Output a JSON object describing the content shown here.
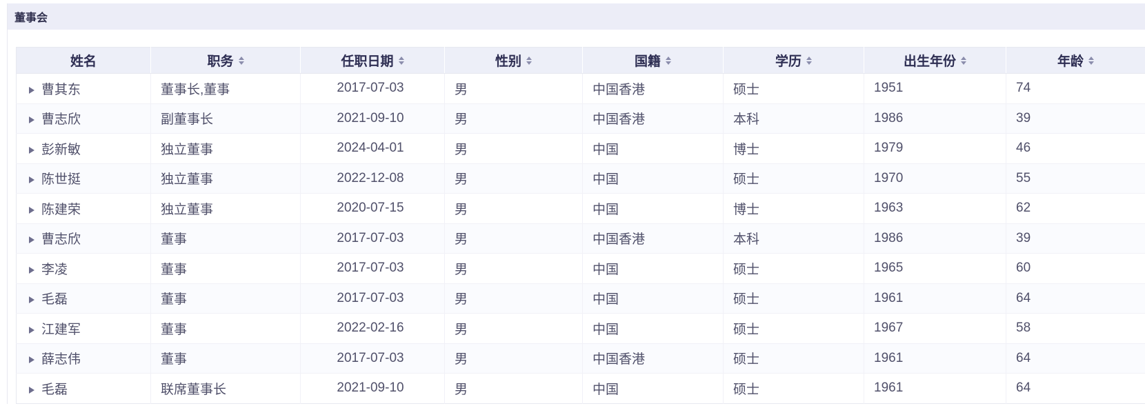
{
  "panel": {
    "title": "董事会"
  },
  "icons": {
    "expand": "▶",
    "sort_asc": "▲",
    "sort_desc": "▼"
  },
  "colors": {
    "title_bar_bg": "#ecedf7",
    "header_bg": "#edeff8",
    "border": "#e7e8f0",
    "row_stripe": "#fafbfe",
    "cell_text": "#50506a",
    "header_text": "#2d2d52",
    "sort_icon": "#8b8dac"
  },
  "table": {
    "columns": [
      {
        "id": "name",
        "label": "姓名",
        "sortable": false
      },
      {
        "id": "position",
        "label": "职务",
        "sortable": true
      },
      {
        "id": "start_date",
        "label": "任职日期",
        "sortable": true
      },
      {
        "id": "gender",
        "label": "性别",
        "sortable": true
      },
      {
        "id": "nationality",
        "label": "国籍",
        "sortable": true
      },
      {
        "id": "education",
        "label": "学历",
        "sortable": true
      },
      {
        "id": "birth_year",
        "label": "出生年份",
        "sortable": true
      },
      {
        "id": "age",
        "label": "年龄",
        "sortable": true
      }
    ],
    "rows": [
      {
        "name": "曹其东",
        "position": "董事长,董事",
        "start_date": "2017-07-03",
        "gender": "男",
        "nationality": "中国香港",
        "education": "硕士",
        "birth_year": "1951",
        "age": "74"
      },
      {
        "name": "曹志欣",
        "position": "副董事长",
        "start_date": "2021-09-10",
        "gender": "男",
        "nationality": "中国香港",
        "education": "本科",
        "birth_year": "1986",
        "age": "39"
      },
      {
        "name": "彭新敏",
        "position": "独立董事",
        "start_date": "2024-04-01",
        "gender": "男",
        "nationality": "中国",
        "education": "博士",
        "birth_year": "1979",
        "age": "46"
      },
      {
        "name": "陈世挺",
        "position": "独立董事",
        "start_date": "2022-12-08",
        "gender": "男",
        "nationality": "中国",
        "education": "硕士",
        "birth_year": "1970",
        "age": "55"
      },
      {
        "name": "陈建荣",
        "position": "独立董事",
        "start_date": "2020-07-15",
        "gender": "男",
        "nationality": "中国",
        "education": "博士",
        "birth_year": "1963",
        "age": "62"
      },
      {
        "name": "曹志欣",
        "position": "董事",
        "start_date": "2017-07-03",
        "gender": "男",
        "nationality": "中国香港",
        "education": "本科",
        "birth_year": "1986",
        "age": "39"
      },
      {
        "name": "李凌",
        "position": "董事",
        "start_date": "2017-07-03",
        "gender": "男",
        "nationality": "中国",
        "education": "硕士",
        "birth_year": "1965",
        "age": "60"
      },
      {
        "name": "毛磊",
        "position": "董事",
        "start_date": "2017-07-03",
        "gender": "男",
        "nationality": "中国",
        "education": "硕士",
        "birth_year": "1961",
        "age": "64"
      },
      {
        "name": "江建军",
        "position": "董事",
        "start_date": "2022-02-16",
        "gender": "男",
        "nationality": "中国",
        "education": "硕士",
        "birth_year": "1967",
        "age": "58"
      },
      {
        "name": "薛志伟",
        "position": "董事",
        "start_date": "2017-07-03",
        "gender": "男",
        "nationality": "中国香港",
        "education": "硕士",
        "birth_year": "1961",
        "age": "64"
      },
      {
        "name": "毛磊",
        "position": "联席董事长",
        "start_date": "2021-09-10",
        "gender": "男",
        "nationality": "中国",
        "education": "硕士",
        "birth_year": "1961",
        "age": "64"
      }
    ]
  }
}
